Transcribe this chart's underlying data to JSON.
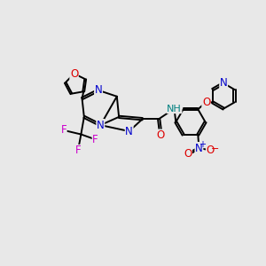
{
  "bg_color": "#e8e8e8",
  "bond_color": "#000000",
  "bond_width": 1.4,
  "atom_colors": {
    "N": "#0000cc",
    "O": "#dd0000",
    "F": "#cc00cc",
    "H": "#008080",
    "C": "#000000"
  },
  "font_size": 8.5,
  "title": ""
}
